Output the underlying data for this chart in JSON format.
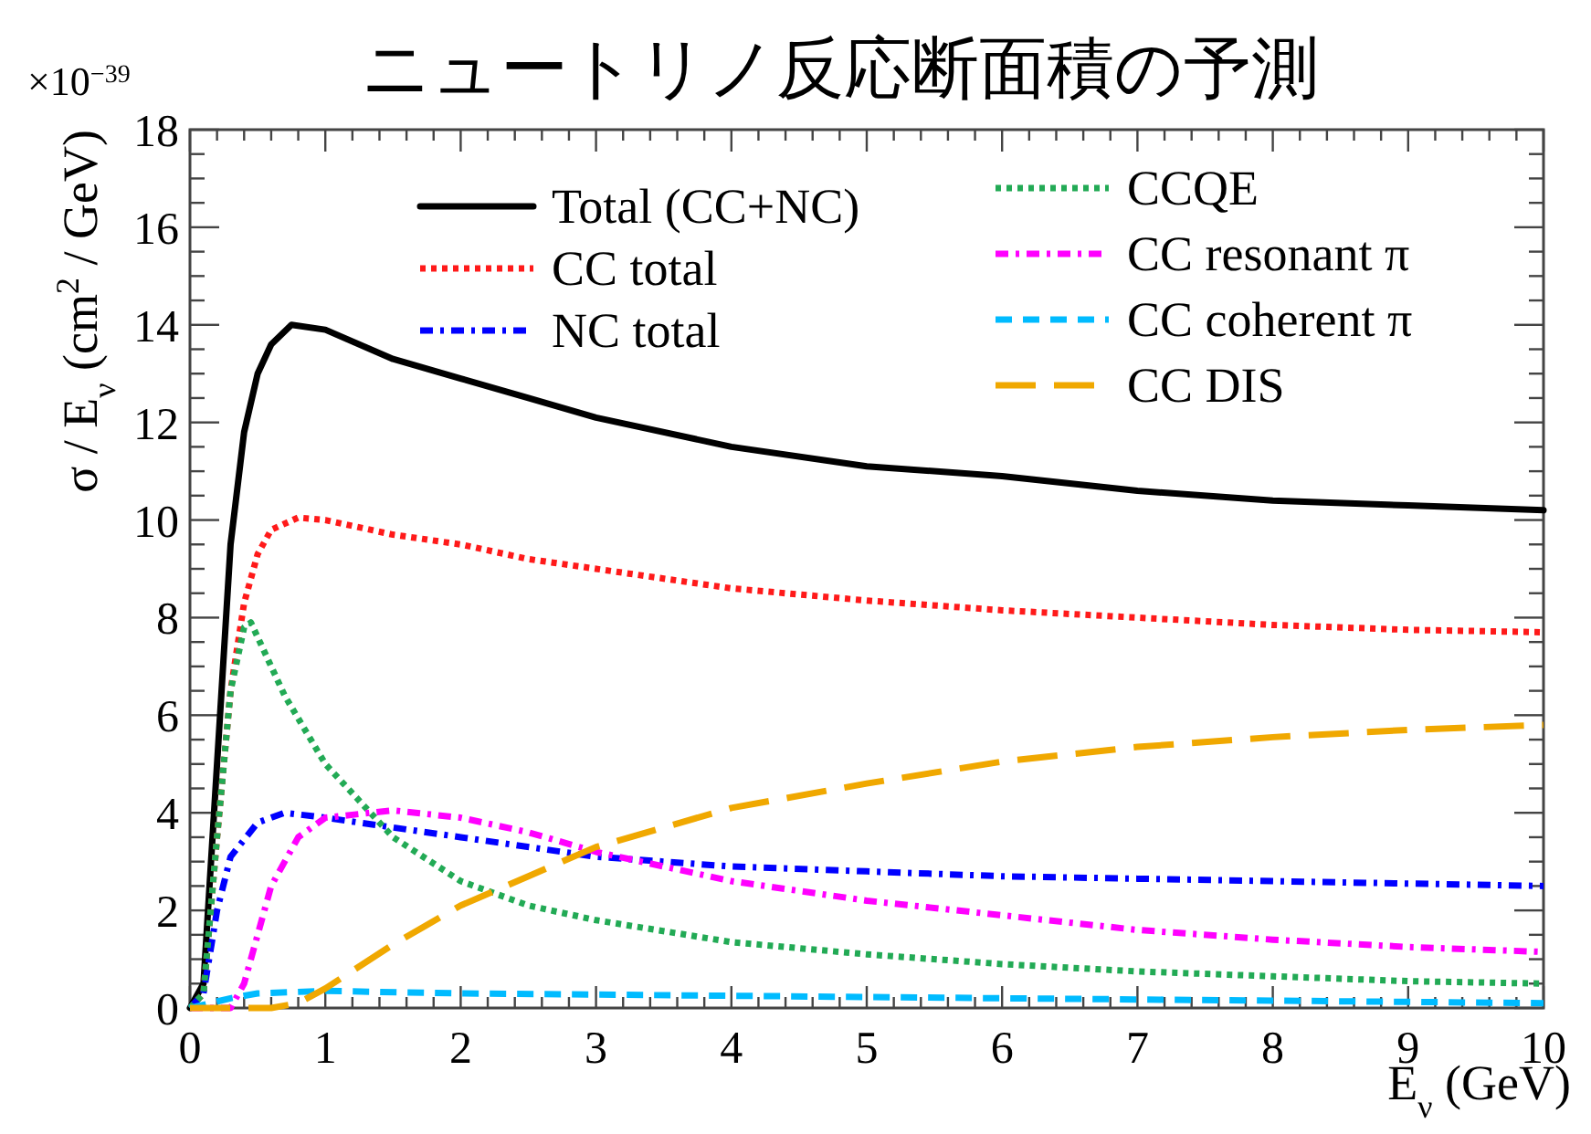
{
  "chart_data": {
    "type": "line",
    "title": "ニュートリノ反応断面積の予測",
    "xlabel": "E$_{ν}$ (GeV)",
    "ylabel": "σ / E$_{ν}$ (cm$^{2}$ / GeV)",
    "annotations": [
      "×10$^{−39}$"
    ],
    "xlim": [
      0,
      10
    ],
    "ylim": [
      0,
      18
    ],
    "xticks": [
      0,
      1,
      2,
      3,
      4,
      5,
      6,
      7,
      8,
      9,
      10
    ],
    "yticks": [
      0,
      2,
      4,
      6,
      8,
      10,
      12,
      14,
      16,
      18
    ],
    "grid": false,
    "legend": "top",
    "marker": "none",
    "series": [
      {
        "name": "Total (CC+NC)",
        "color": "#000000",
        "line_style": "solid",
        "x": [
          0,
          0.1,
          0.2,
          0.3,
          0.4,
          0.5,
          0.6,
          0.75,
          1,
          1.5,
          2,
          2.5,
          3,
          4,
          5,
          6,
          7,
          8,
          9,
          10
        ],
        "values": [
          0,
          0.5,
          5,
          9.5,
          11.8,
          13,
          13.6,
          14,
          13.9,
          13.3,
          12.9,
          12.5,
          12.1,
          11.5,
          11.1,
          10.9,
          10.6,
          10.4,
          10.3,
          10.2
        ]
      },
      {
        "name": "CC total",
        "color": "#ff1a1a",
        "line_style": "dotted",
        "x": [
          0,
          0.1,
          0.2,
          0.3,
          0.4,
          0.5,
          0.6,
          0.8,
          1,
          1.5,
          2,
          2.5,
          3,
          4,
          5,
          6,
          7,
          8,
          9,
          10
        ],
        "values": [
          0,
          0.3,
          3.5,
          6.5,
          8.3,
          9.3,
          9.8,
          10.05,
          10,
          9.7,
          9.5,
          9.2,
          9,
          8.6,
          8.35,
          8.15,
          8,
          7.85,
          7.75,
          7.7
        ]
      },
      {
        "name": "NC total",
        "color": "#0000ff",
        "line_style": "dashdot",
        "x": [
          0,
          0.1,
          0.2,
          0.3,
          0.5,
          0.7,
          1,
          1.5,
          2,
          3,
          4,
          5,
          6,
          7,
          8,
          9,
          10
        ],
        "values": [
          0,
          0.3,
          2,
          3.1,
          3.8,
          4,
          3.9,
          3.7,
          3.5,
          3.1,
          2.9,
          2.8,
          2.7,
          2.65,
          2.6,
          2.55,
          2.5
        ]
      },
      {
        "name": "CCQE",
        "color": "#22aa55",
        "line_style": "dotted",
        "x": [
          0,
          0.1,
          0.2,
          0.3,
          0.4,
          0.45,
          0.5,
          0.7,
          1,
          1.5,
          2,
          2.5,
          3,
          4,
          5,
          6,
          7,
          8,
          9,
          10
        ],
        "values": [
          0,
          0.3,
          3.5,
          6.5,
          7.8,
          7.9,
          7.6,
          6.4,
          5,
          3.5,
          2.6,
          2.1,
          1.8,
          1.35,
          1.1,
          0.9,
          0.75,
          0.65,
          0.55,
          0.5
        ]
      },
      {
        "name": "CC resonant π",
        "color": "#ff00ff",
        "line_style": "dashdot",
        "x": [
          0,
          0.3,
          0.4,
          0.5,
          0.6,
          0.8,
          1,
          1.5,
          2,
          2.5,
          3,
          4,
          5,
          6,
          7,
          8,
          9,
          10
        ],
        "values": [
          0,
          0,
          0.5,
          1.5,
          2.5,
          3.5,
          3.9,
          4.05,
          3.9,
          3.6,
          3.2,
          2.6,
          2.2,
          1.9,
          1.6,
          1.4,
          1.25,
          1.15
        ]
      },
      {
        "name": "CC coherent π",
        "color": "#00bbff",
        "line_style": "dashed",
        "x": [
          0,
          0.3,
          0.5,
          1,
          2,
          4,
          6,
          8,
          10
        ],
        "values": [
          0,
          0.2,
          0.3,
          0.35,
          0.3,
          0.25,
          0.2,
          0.15,
          0.1
        ]
      },
      {
        "name": "CC DIS",
        "color": "#f0a800",
        "line_style": "longdash",
        "x": [
          0,
          0.6,
          0.8,
          1,
          1.5,
          2,
          2.5,
          3,
          4,
          5,
          6,
          7,
          8,
          9,
          10
        ],
        "values": [
          0,
          0,
          0.1,
          0.4,
          1.3,
          2.1,
          2.7,
          3.3,
          4.1,
          4.6,
          5.05,
          5.35,
          5.55,
          5.7,
          5.8
        ]
      }
    ]
  }
}
